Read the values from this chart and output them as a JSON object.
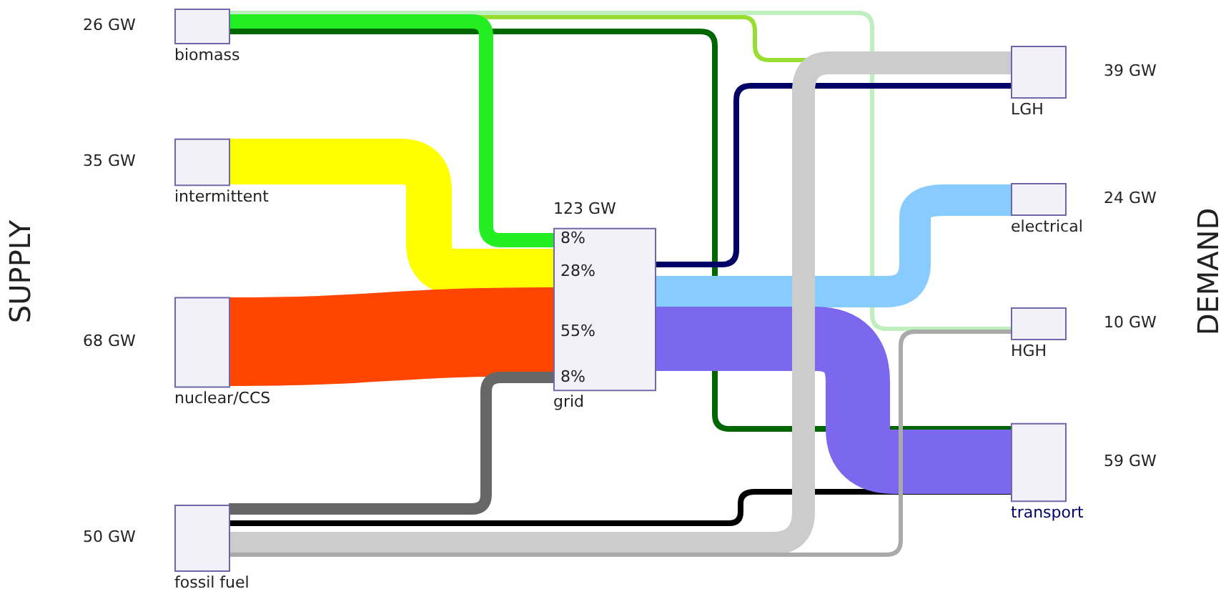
{
  "chart_data": {
    "type": "other",
    "categories": [
      "biomass",
      "intermittent",
      "nuclear/CCS",
      "fossil fuel",
      "grid",
      "LGH",
      "electrical",
      "HGH",
      "transport"
    ],
    "values": [
      26,
      35,
      68,
      50,
      123,
      39,
      24,
      10,
      59
    ],
    "value_labels": [
      "26 GW",
      "35 GW",
      "68 GW",
      "50 GW",
      "123 GW",
      "39 GW",
      "24 GW",
      "10 GW",
      "59 GW"
    ],
    "annotations": [
      "SUPPLY",
      "DEMAND",
      "8%",
      "28%",
      "55%",
      "8%"
    ]
  }
}
